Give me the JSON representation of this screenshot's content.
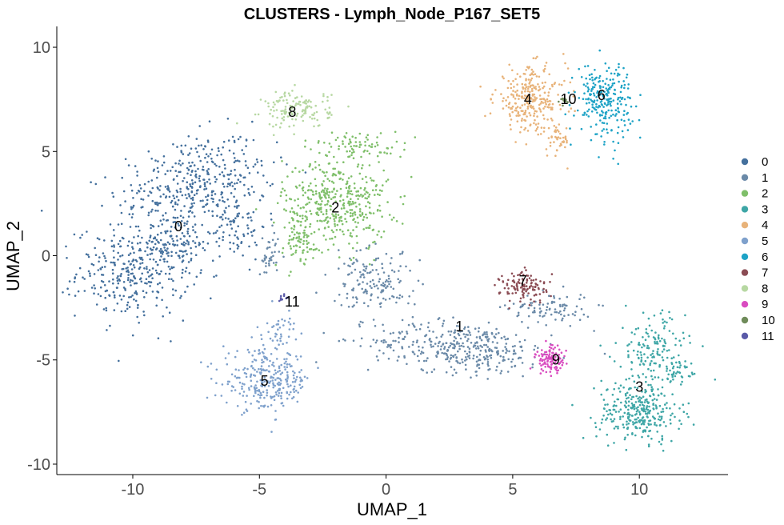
{
  "chart_data": {
    "type": "scatter",
    "title": "CLUSTERS - Lymph_Node_P167_SET5",
    "xlabel": "UMAP_1",
    "ylabel": "UMAP_2",
    "xlim": [
      -13,
      13.5
    ],
    "ylim": [
      -10.5,
      11
    ],
    "xticks": [
      -10,
      -5,
      0,
      5,
      10
    ],
    "xtick_labels": [
      "-10",
      "-5",
      "0",
      "5",
      "10"
    ],
    "yticks": [
      -10,
      -5,
      0,
      5,
      10
    ],
    "ytick_labels": [
      "-10",
      "-5",
      "0",
      "5",
      "10"
    ],
    "grid": false,
    "legend_position": "right",
    "series": [
      {
        "name": "0",
        "color": "#44709d",
        "label_pos": [
          -8.2,
          1.4
        ],
        "blobs": [
          [
            -7.5,
            3.5,
            2.8,
            2.0,
            0.3,
            380
          ],
          [
            -10.0,
            -0.8,
            2.0,
            2.0,
            0,
            320
          ],
          [
            -8.3,
            0.5,
            1.4,
            1.5,
            0,
            120
          ],
          [
            -6.0,
            1.5,
            1.2,
            1.5,
            0,
            80
          ]
        ]
      },
      {
        "name": "1",
        "color": "#6b8aa8",
        "label_pos": [
          2.9,
          -3.4
        ],
        "blobs": [
          [
            3.0,
            -4.4,
            3.2,
            1.1,
            -0.1,
            380
          ],
          [
            -0.5,
            -1.2,
            1.6,
            1.3,
            -0.6,
            150
          ],
          [
            6.5,
            -2.5,
            1.5,
            0.7,
            0,
            90
          ],
          [
            -4.6,
            0,
            0.35,
            1.1,
            0,
            40
          ]
        ]
      },
      {
        "name": "2",
        "color": "#7fbf6a",
        "label_pos": [
          -2.0,
          2.3
        ],
        "blobs": [
          [
            -2.0,
            2.5,
            1.9,
            2.0,
            0,
            420
          ],
          [
            -1.0,
            5.3,
            1.6,
            0.6,
            0,
            80
          ],
          [
            -3.5,
            0.5,
            0.9,
            1.0,
            0,
            60
          ]
        ]
      },
      {
        "name": "3",
        "color": "#3ea6a6",
        "label_pos": [
          10.0,
          -6.3
        ],
        "blobs": [
          [
            10.0,
            -7.5,
            1.5,
            1.3,
            0,
            300
          ],
          [
            10.5,
            -4.5,
            1.2,
            1.6,
            0,
            150
          ],
          [
            11.5,
            -5.5,
            0.5,
            0.5,
            0,
            40
          ]
        ]
      },
      {
        "name": "4",
        "color": "#e8b37a",
        "label_pos": [
          5.6,
          7.5
        ],
        "blobs": [
          [
            5.7,
            7.5,
            1.3,
            1.4,
            0,
            280
          ],
          [
            6.8,
            5.5,
            0.4,
            0.7,
            0,
            40
          ]
        ]
      },
      {
        "name": "5",
        "color": "#7fa1cc",
        "label_pos": [
          -4.8,
          -6.0
        ],
        "blobs": [
          [
            -4.7,
            -6.0,
            1.6,
            1.3,
            0,
            280
          ],
          [
            -4.2,
            -3.5,
            0.6,
            0.8,
            0,
            40
          ]
        ]
      },
      {
        "name": "6",
        "color": "#1ea3c6",
        "label_pos": [
          8.5,
          7.7
        ],
        "blobs": [
          [
            8.6,
            7.5,
            1.0,
            1.6,
            0,
            250
          ]
        ]
      },
      {
        "name": "7",
        "color": "#8b4c54",
        "label_pos": [
          5.4,
          -1.2
        ],
        "blobs": [
          [
            5.5,
            -1.5,
            0.9,
            0.7,
            0,
            120
          ]
        ]
      },
      {
        "name": "8",
        "color": "#b7d8a2",
        "label_pos": [
          -3.7,
          6.9
        ],
        "blobs": [
          [
            -3.5,
            7.0,
            1.2,
            0.8,
            0,
            140
          ]
        ]
      },
      {
        "name": "9",
        "color": "#d94cc0",
        "label_pos": [
          6.7,
          -5.0
        ],
        "blobs": [
          [
            6.5,
            -5.0,
            0.55,
            0.6,
            0,
            110
          ]
        ]
      },
      {
        "name": "10",
        "color": "#6f8b5a",
        "label_pos": [
          7.2,
          7.5
        ],
        "blobs": [
          [
            7.0,
            7.4,
            0.15,
            0.2,
            0,
            10
          ]
        ]
      },
      {
        "name": "11",
        "color": "#5a5aa8",
        "label_pos": [
          -3.7,
          -2.2
        ],
        "blobs": [
          [
            -4.1,
            -2.0,
            0.2,
            0.15,
            0,
            10
          ]
        ]
      }
    ]
  }
}
